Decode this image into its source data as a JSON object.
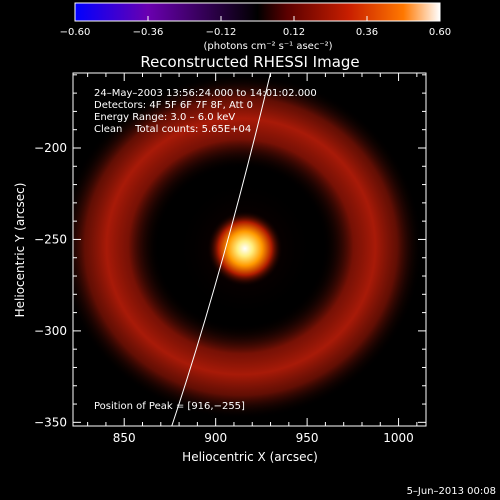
{
  "colors": {
    "background": "#000000",
    "text": "#ffffff",
    "colormap": [
      "#0000ff",
      "#6a00b0",
      "#000000",
      "#5a0000",
      "#c81e00",
      "#ff7800",
      "#ffffff"
    ]
  },
  "colorbar": {
    "tick_labels": [
      "−0.60",
      "−0.36",
      "−0.12",
      "0.12",
      "0.36",
      "0.60"
    ],
    "unit_label": "(photons cm⁻² s⁻¹ asec⁻²)"
  },
  "chart_data": {
    "type": "heatmap",
    "title": "Reconstructed RHESSI Image",
    "xlabel": "Heliocentric X (arcsec)",
    "ylabel": "Heliocentric Y (arcsec)",
    "xlim": [
      822,
      1015
    ],
    "ylim": [
      -352,
      -159
    ],
    "x_ticks": [
      850,
      900,
      950,
      1000
    ],
    "y_ticks": [
      -200,
      -250,
      -300,
      -350
    ],
    "x_tick_labels": [
      "850",
      "900",
      "950",
      "1000"
    ],
    "y_tick_labels": [
      "−200",
      "−250",
      "−300",
      "−350"
    ],
    "color_range": [
      -0.6,
      0.6
    ],
    "peak": {
      "x": 916,
      "y": -255
    },
    "ring_radius_arcsec": 61,
    "limb_curve": [
      [
        876,
        -352
      ],
      [
        895,
        -295
      ],
      [
        913,
        -230
      ],
      [
        930,
        -159
      ]
    ],
    "annotations": [
      "24–May–2003 13:56:24.000 to 14:01:02.000",
      "Detectors: 4F 5F 6F 7F 8F, Att 0",
      "Energy Range: 3.0 – 6.0 keV",
      "Clean    Total counts: 5.65E+04"
    ],
    "peak_label": "Position of Peak = [916,−255]"
  },
  "footer": {
    "date": "5–Jun–2013 00:08"
  }
}
